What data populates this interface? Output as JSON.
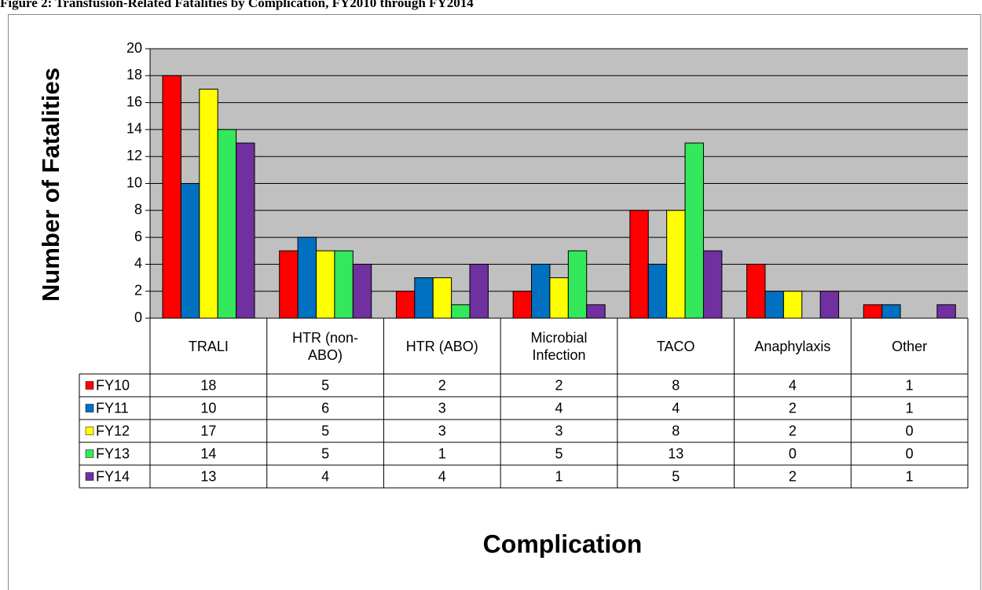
{
  "chart_data": {
    "type": "bar",
    "title": "Figure 2: Transfusion-Related Fatalities by Complication, FY2010 through FY2014",
    "x_label": "Complication",
    "y_label": "Number of Fatalities",
    "categories": [
      "TRALI",
      "HTR (non-ABO)",
      "HTR (ABO)",
      "Microbial Infection",
      "TACO",
      "Anaphylaxis",
      "Other"
    ],
    "series": [
      {
        "name": "FY10",
        "color": "#ff0000",
        "values": [
          18,
          5,
          2,
          2,
          8,
          4,
          1
        ]
      },
      {
        "name": "FY11",
        "color": "#0070c0",
        "values": [
          10,
          6,
          3,
          4,
          4,
          2,
          1
        ]
      },
      {
        "name": "FY12",
        "color": "#ffff00",
        "values": [
          17,
          5,
          3,
          3,
          8,
          2,
          0
        ]
      },
      {
        "name": "FY13",
        "color": "#33e85a",
        "values": [
          14,
          5,
          1,
          5,
          13,
          0,
          0
        ]
      },
      {
        "name": "FY14",
        "color": "#7030a0",
        "values": [
          13,
          4,
          4,
          1,
          5,
          2,
          1
        ]
      }
    ],
    "ylim": [
      0,
      20
    ],
    "yticks": [
      0,
      2,
      4,
      6,
      8,
      10,
      12,
      14,
      16,
      18,
      20
    ],
    "grid": true,
    "data_table": true
  }
}
